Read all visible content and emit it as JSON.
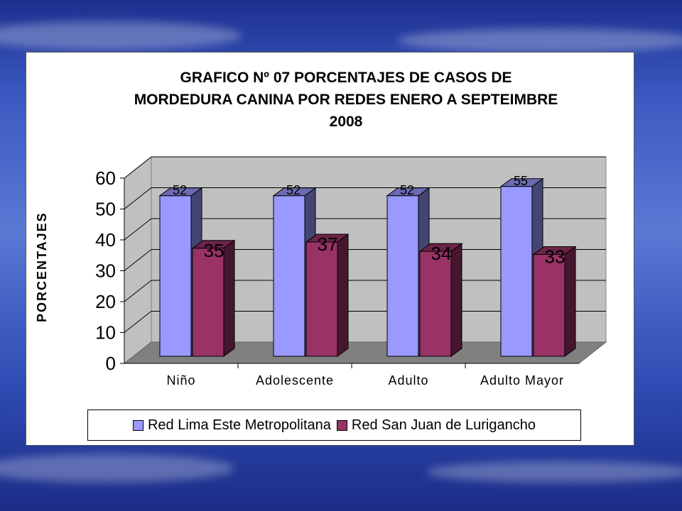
{
  "chart_data": {
    "type": "bar",
    "title_lines": [
      "GRAFICO Nº  07 PORCENTAJES DE CASOS DE",
      "MORDEDURA CANINA POR  REDES ENERO A SEPTEIMBRE",
      "2008"
    ],
    "xlabel": "",
    "ylabel": "PORCENTAJES",
    "ylim": [
      0,
      60
    ],
    "yticks": [
      "0",
      "10",
      "20",
      "30",
      "40",
      "50",
      "60"
    ],
    "categories": [
      "Niño",
      "Adolescente",
      "Adulto",
      "Adulto Mayor"
    ],
    "series": [
      {
        "name": "Red Lima Este Metropolitana",
        "values": [
          52,
          52,
          52,
          55
        ],
        "value_labels": [
          "52",
          "52",
          "52",
          "55"
        ],
        "color": "#9999ff"
      },
      {
        "name": "Red San Juan de Lurigancho",
        "values": [
          35,
          37,
          34,
          33
        ],
        "value_labels": [
          "35",
          "37",
          "34",
          "33"
        ],
        "color": "#993366"
      }
    ],
    "grid": true,
    "legend_position": "bottom",
    "style": "3d-column"
  }
}
